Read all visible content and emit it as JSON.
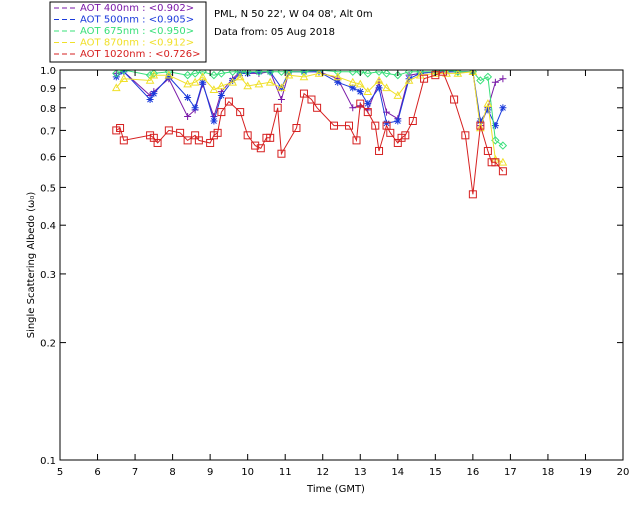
{
  "chart_data": {
    "type": "line",
    "x_scale": "linear",
    "y_scale": "log",
    "xlabel": "Time (GMT)",
    "ylabel": "Single Scattering Albedo (ω₀)",
    "xlim": [
      5,
      20
    ],
    "ylim": [
      0.1,
      1.0
    ],
    "x_ticks": [
      "5",
      "6",
      "7",
      "8",
      "9",
      "10",
      "11",
      "12",
      "13",
      "14",
      "15",
      "16",
      "17",
      "18",
      "19",
      "20"
    ],
    "y_ticks": [
      {
        "value": 1.0,
        "label": "1.0"
      },
      {
        "value": 0.9,
        "label": "0.9"
      },
      {
        "value": 0.8,
        "label": "0.8"
      },
      {
        "value": 0.7,
        "label": "0.7"
      },
      {
        "value": 0.6,
        "label": "0.6"
      },
      {
        "value": 0.5,
        "label": "0.5"
      },
      {
        "value": 0.4,
        "label": "0.4"
      },
      {
        "value": 0.3,
        "label": "0.3"
      },
      {
        "value": 0.2,
        "label": "0.2"
      },
      {
        "value": 0.1,
        "label": "0.1"
      }
    ],
    "info": {
      "site": "PML, N 50 22', W 04 08', Alt 0m",
      "date": "Data from: 05 Aug 2018"
    },
    "legend_position": "top-left",
    "series": [
      {
        "name": "AOT  400nm : <0.902>",
        "color": "#7a1aa8",
        "marker": "plus",
        "x": [
          6.5,
          6.7,
          7.4,
          7.5,
          7.9,
          8.4,
          8.6,
          8.8,
          9.1,
          9.3,
          9.6,
          9.8,
          10.0,
          10.3,
          10.6,
          10.9,
          11.1,
          11.5,
          11.9,
          12.4,
          12.8,
          13.0,
          13.2,
          13.5,
          13.7,
          14.0,
          14.3,
          14.6,
          15.0,
          15.3,
          15.6,
          16.0,
          16.2,
          16.4,
          16.6,
          16.8
        ],
        "y": [
          0.98,
          0.99,
          0.86,
          0.88,
          0.95,
          0.76,
          0.79,
          0.92,
          0.76,
          0.88,
          0.95,
          0.99,
          0.98,
          0.98,
          0.99,
          0.84,
          0.99,
          0.99,
          0.99,
          0.95,
          0.8,
          0.81,
          0.79,
          0.93,
          0.78,
          0.75,
          0.97,
          0.98,
          0.99,
          0.99,
          0.99,
          0.99,
          0.72,
          0.8,
          0.93,
          0.95
        ]
      },
      {
        "name": "AOT  500nm : <0.905>",
        "color": "#1a3adb",
        "marker": "asterisk",
        "x": [
          6.5,
          6.7,
          7.4,
          7.5,
          7.9,
          8.4,
          8.6,
          8.8,
          9.1,
          9.3,
          9.6,
          9.8,
          10.0,
          10.3,
          10.6,
          10.9,
          11.1,
          11.5,
          11.9,
          12.4,
          12.8,
          13.0,
          13.2,
          13.5,
          13.7,
          14.0,
          14.3,
          14.6,
          15.0,
          15.3,
          15.6,
          16.0,
          16.2,
          16.4,
          16.6,
          16.8
        ],
        "y": [
          0.96,
          0.99,
          0.84,
          0.87,
          0.96,
          0.85,
          0.8,
          0.93,
          0.74,
          0.86,
          0.94,
          0.98,
          0.98,
          0.99,
          0.99,
          0.9,
          0.99,
          0.99,
          0.99,
          0.93,
          0.9,
          0.88,
          0.82,
          0.9,
          0.73,
          0.74,
          0.95,
          0.98,
          0.99,
          0.99,
          0.99,
          0.99,
          0.74,
          0.79,
          0.72,
          0.8
        ]
      },
      {
        "name": "AOT  675nm : <0.950>",
        "color": "#39e07a",
        "marker": "diamond",
        "x": [
          6.5,
          6.7,
          7.4,
          7.5,
          7.9,
          8.4,
          8.6,
          8.8,
          9.1,
          9.3,
          9.6,
          9.8,
          10.0,
          10.3,
          10.6,
          10.9,
          11.1,
          11.5,
          11.9,
          12.4,
          12.8,
          13.0,
          13.2,
          13.5,
          13.7,
          14.0,
          14.3,
          14.6,
          15.0,
          15.3,
          15.6,
          16.0,
          16.2,
          16.4,
          16.6,
          16.8
        ],
        "y": [
          0.98,
          1.0,
          0.97,
          0.98,
          0.99,
          0.97,
          0.98,
          0.99,
          0.97,
          0.98,
          0.99,
          0.99,
          0.99,
          0.99,
          0.99,
          0.99,
          0.99,
          0.99,
          1.0,
          0.99,
          0.99,
          0.99,
          0.98,
          0.99,
          0.98,
          0.97,
          0.99,
          0.99,
          0.99,
          1.0,
          0.99,
          0.99,
          0.94,
          0.96,
          0.66,
          0.64
        ]
      },
      {
        "name": "AOT  870nm : <0.912>",
        "color": "#f0e02a",
        "marker": "triangle",
        "x": [
          6.5,
          6.7,
          7.4,
          7.5,
          7.9,
          8.4,
          8.6,
          8.8,
          9.1,
          9.3,
          9.6,
          9.8,
          10.0,
          10.3,
          10.6,
          10.9,
          11.1,
          11.5,
          11.9,
          12.4,
          12.8,
          13.0,
          13.2,
          13.5,
          13.7,
          14.0,
          14.3,
          14.6,
          15.0,
          15.3,
          15.6,
          16.0,
          16.2,
          16.4,
          16.6,
          16.8
        ],
        "y": [
          0.9,
          0.95,
          0.94,
          0.97,
          0.97,
          0.92,
          0.93,
          0.96,
          0.89,
          0.91,
          0.93,
          0.96,
          0.91,
          0.92,
          0.93,
          0.9,
          0.97,
          0.96,
          0.98,
          0.96,
          0.93,
          0.92,
          0.88,
          0.94,
          0.9,
          0.86,
          0.94,
          0.97,
          0.98,
          0.98,
          0.98,
          0.99,
          0.71,
          0.82,
          0.59,
          0.58
        ]
      },
      {
        "name": "AOT 1020nm : <0.726>",
        "color": "#d62020",
        "marker": "square",
        "x": [
          6.5,
          6.6,
          6.7,
          7.4,
          7.5,
          7.6,
          7.9,
          8.2,
          8.4,
          8.6,
          8.7,
          9.0,
          9.1,
          9.2,
          9.3,
          9.5,
          9.8,
          10.0,
          10.2,
          10.35,
          10.5,
          10.6,
          10.8,
          10.9,
          11.3,
          11.5,
          11.7,
          11.85,
          12.3,
          12.7,
          12.9,
          13.0,
          13.2,
          13.4,
          13.5,
          13.7,
          13.8,
          14.0,
          14.1,
          14.2,
          14.4,
          14.7,
          15.0,
          15.2,
          15.5,
          15.8,
          16.0,
          16.2,
          16.4,
          16.5,
          16.6,
          16.8
        ],
        "y": [
          0.7,
          0.71,
          0.66,
          0.68,
          0.67,
          0.65,
          0.7,
          0.69,
          0.66,
          0.68,
          0.66,
          0.65,
          0.68,
          0.69,
          0.78,
          0.83,
          0.78,
          0.68,
          0.64,
          0.63,
          0.67,
          0.67,
          0.8,
          0.61,
          0.71,
          0.87,
          0.84,
          0.8,
          0.72,
          0.72,
          0.66,
          0.82,
          0.78,
          0.72,
          0.62,
          0.72,
          0.69,
          0.65,
          0.67,
          0.68,
          0.74,
          0.95,
          0.97,
          0.99,
          0.84,
          0.68,
          0.48,
          0.72,
          0.62,
          0.58,
          0.58,
          0.55
        ]
      }
    ]
  }
}
